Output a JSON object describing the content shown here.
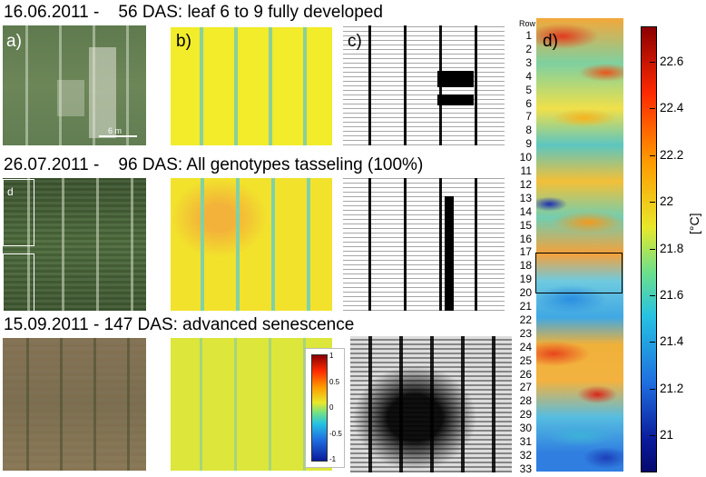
{
  "rows": [
    {
      "date": "16.06.2011 -",
      "description": "56 DAS: leaf 6 to 9 fully developed"
    },
    {
      "date": "26.07.2011 -",
      "description": "96 DAS: All genotypes tasseling (100%)"
    },
    {
      "date": "15.09.2011 -",
      "description": "147 DAS: advanced senescence"
    }
  ],
  "panel_labels": {
    "a": "a)",
    "b": "b)",
    "c": "c)",
    "d": "d)"
  },
  "inset_label": "d",
  "scale_bar_label": "6 m",
  "inset_colorbar": {
    "ticks": [
      "1",
      "0.5",
      "0",
      "-0.5",
      "-1"
    ]
  },
  "heatmap": {
    "row_header": "Row",
    "row_numbers": [
      "1",
      "2",
      "3",
      "4",
      "5",
      "6",
      "7",
      "8",
      "9",
      "10",
      "11",
      "12",
      "13",
      "14",
      "15",
      "16",
      "17",
      "18",
      "19",
      "20",
      "21",
      "22",
      "23",
      "24",
      "25",
      "26",
      "27",
      "28",
      "29",
      "30",
      "31",
      "32",
      "33"
    ],
    "highlight_rows": [
      17,
      19
    ]
  },
  "colorbar": {
    "unit": "[°C]",
    "ticks": [
      "22.6",
      "22.4",
      "22.2",
      "22",
      "21.8",
      "21.6",
      "21.4",
      "21.2",
      "21"
    ],
    "tick_values": [
      22.6,
      22.4,
      22.2,
      22.0,
      21.8,
      21.6,
      21.4,
      21.2,
      21.0
    ],
    "range": [
      20.85,
      22.75
    ]
  },
  "colors": {
    "warm": "#d8261a",
    "cool": "#1c2fb0",
    "mid": "#e8e82a"
  }
}
